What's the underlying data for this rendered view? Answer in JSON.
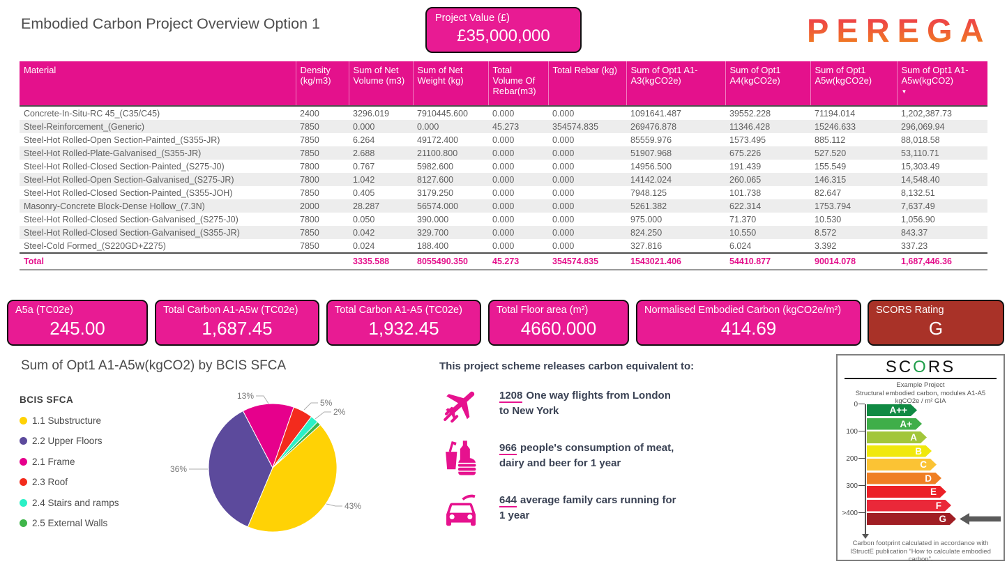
{
  "page": {
    "title": "Embodied Carbon Project Overview Option 1"
  },
  "logo": {
    "text": "PEREGA"
  },
  "project_value": {
    "label": "Project Value (£)",
    "value": "£35,000,000"
  },
  "colors": {
    "accent_pink": "#e4118c",
    "card_pink": "#e81b93",
    "dark_red": "#a93228"
  },
  "table": {
    "sort_icon": "▼",
    "columns": [
      "Material",
      "Density (kg/m3)",
      "Sum of Net Volume (m3)",
      "Sum of Net Weight (kg)",
      "Total Volume Of Rebar(m3)",
      "Total Rebar (kg)",
      "Sum of Opt1 A1-A3(kgCO2e)",
      "Sum of Opt1 A4(kgCO2e)",
      "Sum of Opt1 A5w(kgCO2e)",
      "Sum of Opt1 A1-A5w(kgCO2)"
    ],
    "rows": [
      [
        "Concrete-In-Situ-RC 45_(C35/C45)",
        "2400",
        "3296.019",
        "7910445.600",
        "0.000",
        "0.000",
        "1091641.487",
        "39552.228",
        "71194.014",
        "1,202,387.73"
      ],
      [
        "Steel-Reinforcement_(Generic)",
        "7850",
        "0.000",
        "0.000",
        "45.273",
        "354574.835",
        "269476.878",
        "11346.428",
        "15246.633",
        "296,069.94"
      ],
      [
        "Steel-Hot Rolled-Open Section-Painted_(S355-JR)",
        "7850",
        "6.264",
        "49172.400",
        "0.000",
        "0.000",
        "85559.976",
        "1573.495",
        "885.112",
        "88,018.58"
      ],
      [
        "Steel-Hot Rolled-Plate-Galvanised_(S355-JR)",
        "7850",
        "2.688",
        "21100.800",
        "0.000",
        "0.000",
        "51907.968",
        "675.226",
        "527.520",
        "53,110.71"
      ],
      [
        "Steel-Hot Rolled-Closed Section-Painted_(S275-J0)",
        "7800",
        "0.767",
        "5982.600",
        "0.000",
        "0.000",
        "14956.500",
        "191.439",
        "155.549",
        "15,303.49"
      ],
      [
        "Steel-Hot Rolled-Open Section-Galvanised_(S275-JR)",
        "7800",
        "1.042",
        "8127.600",
        "0.000",
        "0.000",
        "14142.024",
        "260.065",
        "146.315",
        "14,548.40"
      ],
      [
        "Steel-Hot Rolled-Closed Section-Painted_(S355-JOH)",
        "7850",
        "0.405",
        "3179.250",
        "0.000",
        "0.000",
        "7948.125",
        "101.738",
        "82.647",
        "8,132.51"
      ],
      [
        "Masonry-Concrete Block-Dense Hollow_(7.3N)",
        "2000",
        "28.287",
        "56574.000",
        "0.000",
        "0.000",
        "5261.382",
        "622.314",
        "1753.794",
        "7,637.49"
      ],
      [
        "Steel-Hot Rolled-Closed Section-Galvanised_(S275-J0)",
        "7800",
        "0.050",
        "390.000",
        "0.000",
        "0.000",
        "975.000",
        "71.370",
        "10.530",
        "1,056.90"
      ],
      [
        "Steel-Hot Rolled-Closed Section-Galvanised_(S355-JR)",
        "7850",
        "0.042",
        "329.700",
        "0.000",
        "0.000",
        "824.250",
        "10.550",
        "8.572",
        "843.37"
      ],
      [
        "Steel-Cold Formed_(S220GD+Z275)",
        "7850",
        "0.024",
        "188.400",
        "0.000",
        "0.000",
        "327.816",
        "6.024",
        "3.392",
        "337.23"
      ]
    ],
    "total": [
      "Total",
      "",
      "3335.588",
      "8055490.350",
      "45.273",
      "354574.835",
      "1543021.406",
      "54410.877",
      "90014.078",
      "1,687,446.36"
    ]
  },
  "kpis": [
    {
      "label": "A5a (TC02e)",
      "value": "245.00",
      "color": "#e81b93"
    },
    {
      "label": "Total Carbon A1-A5w (TC02e)",
      "value": "1,687.45",
      "color": "#e81b93"
    },
    {
      "label": "Total Carbon A1-A5 (TC02e)",
      "value": "1,932.45",
      "color": "#e81b93"
    },
    {
      "label": "Total Floor area (m²)",
      "value": "4660.000",
      "color": "#e81b93"
    },
    {
      "label": "Normalised Embodied Carbon (kgCO2e/m²)",
      "value": "414.69",
      "color": "#e81b93"
    },
    {
      "label": "SCORS Rating",
      "value": "G",
      "color": "#a93228"
    }
  ],
  "chart_data": {
    "type": "pie",
    "title": "Sum of Opt1 A1-A5w(kgCO2) by BCIS SFCA",
    "legend_title": "BCIS SFCA",
    "legend_position": "left",
    "start_angle_deg": 48,
    "slices": [
      {
        "label": "1.1 Substructure",
        "percent": 43,
        "percent_label": "43%",
        "color": "#ffd205"
      },
      {
        "label": "2.2 Upper Floors",
        "percent": 36,
        "percent_label": "36%",
        "color": "#5c4a9c"
      },
      {
        "label": "2.1 Frame",
        "percent": 13,
        "percent_label": "13%",
        "color": "#e6008c"
      },
      {
        "label": "2.3 Roof",
        "percent": 5,
        "percent_label": "5%",
        "color": "#f32b1d"
      },
      {
        "label": "2.4 Stairs and ramps",
        "percent": 2,
        "percent_label": "2%",
        "color": "#2bf0c6"
      },
      {
        "label": "2.5 External Walls",
        "percent": 1,
        "percent_label": "",
        "color": "#3fb54a"
      }
    ]
  },
  "equivalents": {
    "header": "This project scheme releases carbon equivalent to:",
    "items": [
      {
        "icon": "plane-icon",
        "number": "1208",
        "text": "One way flights from London to New York"
      },
      {
        "icon": "food-icon",
        "number": "966",
        "text": "people's consumption of meat, dairy and beer for 1 year"
      },
      {
        "icon": "car-icon",
        "number": "644",
        "text": "average family cars running for 1 year"
      }
    ]
  },
  "scors": {
    "title": {
      "pre": "SC",
      "o": "O",
      "post": "RS"
    },
    "subtitle": [
      "Example Project",
      "Structural embodied carbon, modules A1-A5",
      "kgCO2e / m² GIA"
    ],
    "scale": [
      "0",
      "100",
      "200",
      "300",
      ">400"
    ],
    "grades": [
      {
        "label": "A++",
        "color": "#108a43"
      },
      {
        "label": "A+",
        "color": "#3fae49"
      },
      {
        "label": "A",
        "color": "#a2c63a"
      },
      {
        "label": "B",
        "color": "#f0e80c"
      },
      {
        "label": "C",
        "color": "#fbc334"
      },
      {
        "label": "D",
        "color": "#ef7f24"
      },
      {
        "label": "E",
        "color": "#ec2027"
      },
      {
        "label": "F",
        "color": "#ea2839"
      },
      {
        "label": "G",
        "color": "#a01e24"
      }
    ],
    "pointer_grade": "G",
    "footer": "Carbon footprint calculated in accordance with IStructE publication “How to calculate embodied carbon”."
  }
}
